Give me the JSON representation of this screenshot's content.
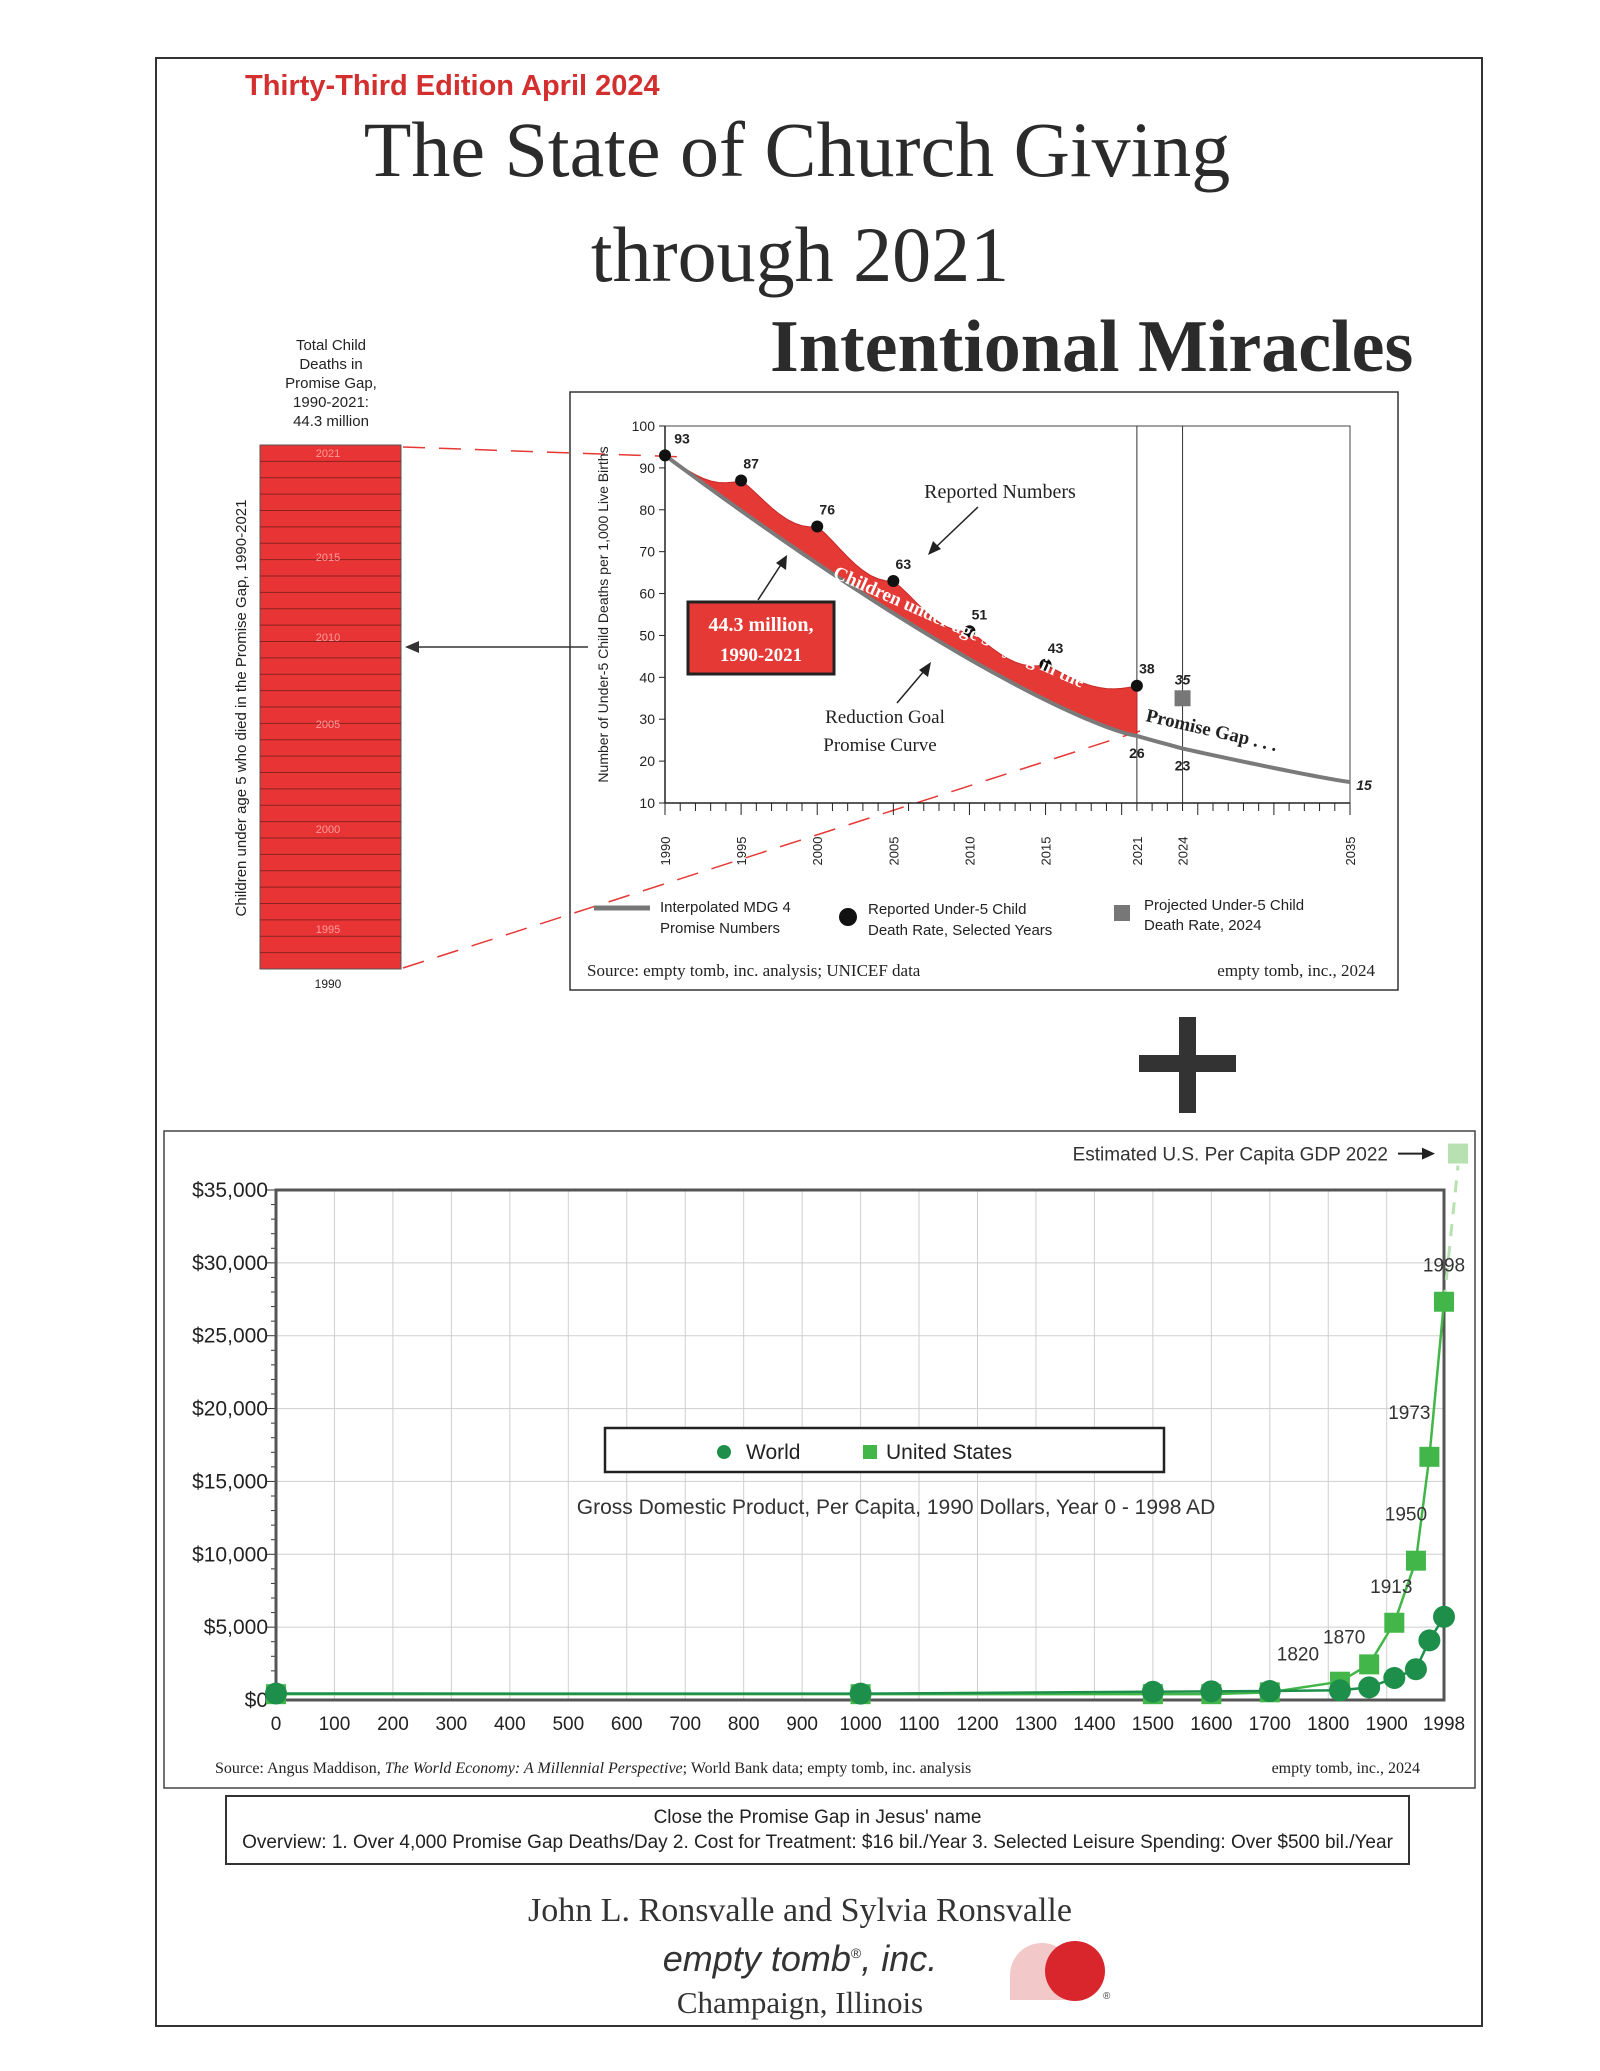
{
  "header": {
    "edition": "Thirty-Third Edition April 2024",
    "title_line1": "The State of Church Giving",
    "title_line2": "through 2021",
    "subtitle": "Intentional Miracles"
  },
  "bar": {
    "caption": [
      "Total Child",
      "Deaths in",
      "Promise Gap,",
      "1990-2021:",
      "44.3 million"
    ],
    "ylabel": "Children under age 5 who died in the Promise Gap, 1990-2021",
    "year_labels": [
      "2021",
      "2015",
      "2010",
      "2005",
      "2000",
      "1995"
    ],
    "bottom_label": "1990"
  },
  "chart_data": [
    {
      "type": "line",
      "ylabel": "Number of Under-5 Child Deaths per 1,000 Live Births",
      "ylim": [
        10,
        100
      ],
      "yticks": [
        "100",
        "90",
        "80",
        "70",
        "60",
        "50",
        "40",
        "30",
        "20",
        "10"
      ],
      "xticks": [
        "1990",
        "1995",
        "2000",
        "2005",
        "2010",
        "2015",
        "2021",
        "2024",
        "2035"
      ],
      "reported": {
        "name": "Reported Under-5 Child Death Rate, Selected Years",
        "x": [
          1990,
          1995,
          2000,
          2005,
          2010,
          2015,
          2021
        ],
        "y": [
          93,
          87,
          76,
          63,
          51,
          43,
          38
        ],
        "labels": [
          "93",
          "87",
          "76",
          "63",
          "51",
          "43",
          "38"
        ]
      },
      "projected": {
        "name": "Projected Under-5 Child Death Rate, 2024",
        "x": [
          2024
        ],
        "y": [
          35
        ],
        "label": "35"
      },
      "promise_curve": {
        "name": "Interpolated MDG 4 Promise Numbers",
        "points": [
          [
            1990,
            93
          ],
          [
            2021,
            26
          ],
          [
            2024,
            23
          ],
          [
            2035,
            15
          ]
        ],
        "labels": [
          "26",
          "23",
          "15"
        ]
      },
      "annotations": {
        "reported": "Reported Numbers",
        "gap_box": [
          "44.3 million,",
          "1990-2021"
        ],
        "goal": [
          "Reduction Goal",
          "Promise Curve"
        ],
        "band_text": "Children under age 5 dying in the",
        "gap_text": "Promise Gap . . ."
      },
      "legend": [
        {
          "line1": "Interpolated MDG 4",
          "line2": "Promise Numbers"
        },
        {
          "line1": "Reported Under-5 Child",
          "line2": "Death Rate, Selected Years"
        },
        {
          "line1": "Projected Under-5 Child",
          "line2": "Death Rate, 2024"
        }
      ],
      "source": "Source: empty tomb, inc. analysis; UNICEF data",
      "credit": "empty tomb, inc., 2024"
    },
    {
      "type": "line",
      "title": "Gross Domestic Product, Per Capita, 1990 Dollars, Year 0 - 1998 AD",
      "ylim": [
        0,
        35000
      ],
      "yticks": [
        "$35,000",
        "$30,000",
        "$25,000",
        "$20,000",
        "$15,000",
        "$10,000",
        "$5,000",
        "$0"
      ],
      "xticks": [
        "0",
        "100",
        "200",
        "300",
        "400",
        "500",
        "600",
        "700",
        "800",
        "900",
        "1000",
        "1100",
        "1200",
        "1300",
        "1400",
        "1500",
        "1600",
        "1700",
        "1800",
        "1900",
        "1998"
      ],
      "grid": true,
      "legend_position": "center",
      "series": [
        {
          "name": "World",
          "x": [
            0,
            1000,
            1500,
            1600,
            1700,
            1820,
            1870,
            1913,
            1950,
            1973,
            1998
          ],
          "y": [
            445,
            436,
            566,
            595,
            615,
            667,
            867,
            1510,
            2114,
            4091,
            5709
          ]
        },
        {
          "name": "United States",
          "x": [
            0,
            1000,
            1500,
            1600,
            1700,
            1820,
            1870,
            1913,
            1950,
            1973,
            1998
          ],
          "y": [
            400,
            400,
            400,
            400,
            527,
            1257,
            2445,
            5301,
            9561,
            16689,
            27331
          ]
        }
      ],
      "us_labels": [
        {
          "year": 1820,
          "text": "1820"
        },
        {
          "year": 1870,
          "text": "1870"
        },
        {
          "year": 1913,
          "text": "1913"
        },
        {
          "year": 1950,
          "text": "1950"
        },
        {
          "year": 1973,
          "text": "1973"
        },
        {
          "year": 1998,
          "text": "1998"
        }
      ],
      "gdp_2022": {
        "label": "Estimated U.S. Per Capita GDP 2022",
        "value": 37500
      },
      "source": {
        "prefix": "Source: Angus Maddison, ",
        "title": "The World Economy: A Millennial Perspective",
        "suffix": "; World Bank data; empty tomb, inc. analysis"
      },
      "credit": "empty tomb, inc., 2024"
    }
  ],
  "footer": {
    "line1": "Close the Promise Gap in Jesus' name",
    "line2": "Overview: 1. Over 4,000 Promise Gap Deaths/Day  2. Cost for Treatment: $16 bil./Year   3. Selected Leisure Spending: Over $500 bil./Year",
    "authors": "John L. Ronsvalle and Sylvia Ronsvalle",
    "company": "empty tomb",
    "company_suffix": ", inc.",
    "city": "Champaign, Illinois"
  },
  "colors": {
    "red": "#e53935",
    "dark_red": "#c62828",
    "world_green": "#1e8f4a",
    "us_green": "#43b649",
    "light_green": "#b7e1b0",
    "gray": "#777777"
  }
}
